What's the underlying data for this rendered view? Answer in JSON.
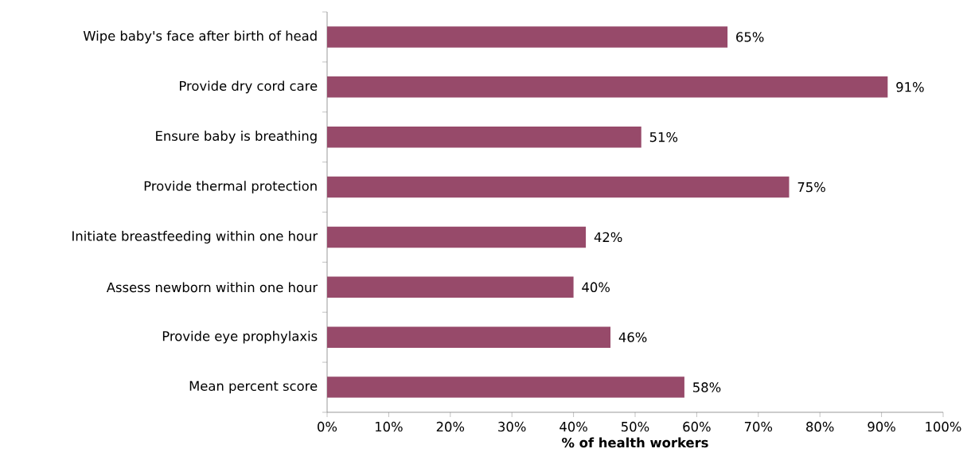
{
  "chart_data": {
    "type": "bar",
    "orientation": "horizontal",
    "xlabel": "% of health workers",
    "categories": [
      "Wipe baby's face after birth of head",
      "Provide dry cord care",
      "Ensure baby is breathing",
      "Provide thermal protection",
      "Initiate breastfeeding within one hour",
      "Assess newborn within one hour",
      "Provide eye prophylaxis",
      "Mean percent score"
    ],
    "values": [
      65,
      91,
      51,
      75,
      42,
      40,
      46,
      58
    ],
    "value_labels": [
      "65%",
      "91%",
      "51%",
      "75%",
      "42%",
      "40%",
      "46%",
      "58%"
    ],
    "color": "#974a6a",
    "xlim": [
      0,
      100
    ],
    "xticks": [
      {
        "value": 0,
        "label": "0%"
      },
      {
        "value": 10,
        "label": "10%"
      },
      {
        "value": 20,
        "label": "20%"
      },
      {
        "value": 30,
        "label": "30%"
      },
      {
        "value": 40,
        "label": "40%"
      },
      {
        "value": 50,
        "label": "50%"
      },
      {
        "value": 60,
        "label": "60%"
      },
      {
        "value": 70,
        "label": "70%"
      },
      {
        "value": 80,
        "label": "80%"
      },
      {
        "value": 90,
        "label": "90%"
      },
      {
        "value": 100,
        "label": "100%"
      }
    ]
  }
}
